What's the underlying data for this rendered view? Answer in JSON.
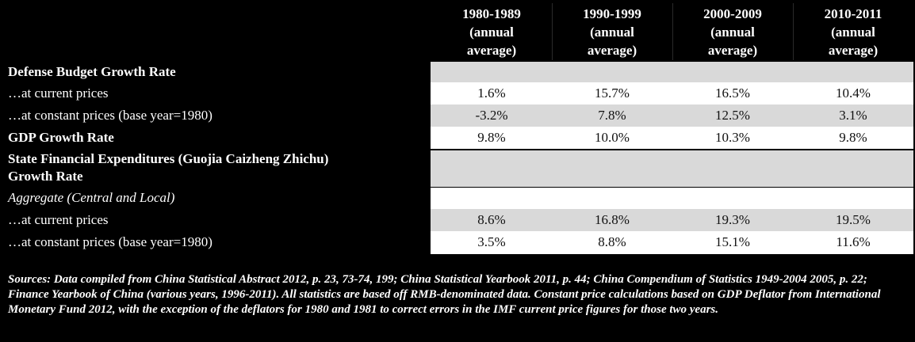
{
  "columns": [
    {
      "period": "1980-1989",
      "line2": "(annual",
      "line3": "average)"
    },
    {
      "period": "1990-1999",
      "line2": "(annual",
      "line3": "average)"
    },
    {
      "period": "2000-2009",
      "line2": "(annual",
      "line3": "average)"
    },
    {
      "period": "2010-2011",
      "line2": "(annual",
      "line3": "average)"
    }
  ],
  "rows": [
    {
      "label": "Defense Budget Growth Rate",
      "values": [
        "",
        "",
        "",
        ""
      ]
    },
    {
      "label": "…at current prices",
      "values": [
        "1.6%",
        "15.7%",
        "16.5%",
        "10.4%"
      ]
    },
    {
      "label": "…at constant prices (base year=1980)",
      "values": [
        "-3.2%",
        "7.8%",
        "12.5%",
        "3.1%"
      ]
    },
    {
      "label": "GDP Growth Rate",
      "values": [
        "9.8%",
        "10.0%",
        "10.3%",
        "9.8%"
      ]
    },
    {
      "label": "State Financial Expenditures (Guojia Caizheng Zhichu)",
      "label2": "Growth Rate",
      "values": [
        "",
        "",
        "",
        ""
      ]
    },
    {
      "label": "Aggregate (Central and Local)",
      "values": [
        "",
        "",
        "",
        ""
      ]
    },
    {
      "label": "…at current prices",
      "values": [
        "8.6%",
        "16.8%",
        "19.3%",
        "19.5%"
      ]
    },
    {
      "label": "…at constant prices (base year=1980)",
      "values": [
        "3.5%",
        "8.8%",
        "15.1%",
        "11.6%"
      ]
    }
  ],
  "sources": "Sources: Data compiled from China Statistical Abstract 2012, p. 23, 73-74, 199; China Statistical Yearbook 2011, p. 44; China Compendium of Statistics 1949-2004 2005, p. 22; Finance Yearbook of China (various years, 1996-2011).  All statistics are based off RMB-denominated data. Constant price calculations based on GDP Deflator from International Monetary Fund 2012, with the exception of the deflators for 1980 and 1981 to correct errors in the IMF current price figures for those two years."
}
